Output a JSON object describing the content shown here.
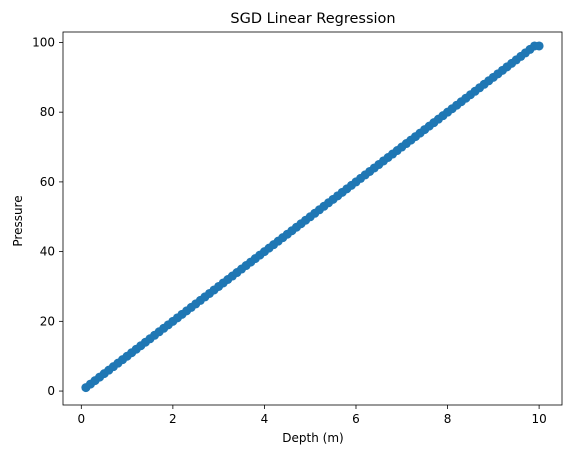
{
  "chart_data": {
    "type": "scatter",
    "title": "SGD Linear Regression",
    "xlabel": "Depth (m)",
    "ylabel": "Pressure",
    "xlim": [
      -0.4,
      10.5
    ],
    "ylim": [
      -4,
      103
    ],
    "xticks": [
      0,
      2,
      4,
      6,
      8,
      10
    ],
    "yticks": [
      0,
      20,
      40,
      60,
      80,
      100
    ],
    "grid": false,
    "marker_color": "#1f77b4",
    "series": [
      {
        "x": [
          0.1,
          0.2,
          0.3,
          0.4,
          0.5,
          0.6,
          0.7,
          0.8,
          0.9,
          1.0,
          1.1,
          1.2,
          1.3,
          1.4,
          1.5,
          1.6,
          1.7,
          1.8,
          1.9,
          2.0,
          2.1,
          2.2,
          2.3,
          2.4,
          2.5,
          2.6,
          2.7,
          2.8,
          2.9,
          3.0,
          3.1,
          3.2,
          3.3,
          3.4,
          3.5,
          3.6,
          3.7,
          3.8,
          3.9,
          4.0,
          4.1,
          4.2,
          4.3,
          4.4,
          4.5,
          4.6,
          4.7,
          4.8,
          4.9,
          5.0,
          5.1,
          5.2,
          5.3,
          5.4,
          5.5,
          5.6,
          5.7,
          5.8,
          5.9,
          6.0,
          6.1,
          6.2,
          6.3,
          6.4,
          6.5,
          6.6,
          6.7,
          6.8,
          6.9,
          7.0,
          7.1,
          7.2,
          7.3,
          7.4,
          7.5,
          7.6,
          7.7,
          7.8,
          7.9,
          8.0,
          8.1,
          8.2,
          8.3,
          8.4,
          8.5,
          8.6,
          8.7,
          8.8,
          8.9,
          9.0,
          9.1,
          9.2,
          9.3,
          9.4,
          9.5,
          9.6,
          9.7,
          9.8,
          9.9,
          10.0
        ],
        "y": [
          1,
          2,
          3,
          4,
          5,
          6,
          7,
          8,
          9,
          10,
          11,
          12,
          13,
          14,
          15,
          16,
          17,
          18,
          19,
          20,
          21,
          22,
          23,
          24,
          25,
          26,
          27,
          28,
          29,
          30,
          31,
          32,
          33,
          34,
          35,
          36,
          37,
          38,
          39,
          40,
          41,
          42,
          43,
          44,
          45,
          46,
          47,
          48,
          49,
          50,
          51,
          52,
          53,
          54,
          55,
          56,
          57,
          58,
          59,
          60,
          61,
          62,
          63,
          64,
          65,
          66,
          67,
          68,
          69,
          70,
          71,
          72,
          73,
          74,
          75,
          76,
          77,
          78,
          79,
          80,
          81,
          82,
          83,
          84,
          85,
          86,
          87,
          88,
          89,
          90,
          91,
          92,
          93,
          94,
          95,
          96,
          97,
          98,
          99,
          99
        ]
      }
    ]
  }
}
